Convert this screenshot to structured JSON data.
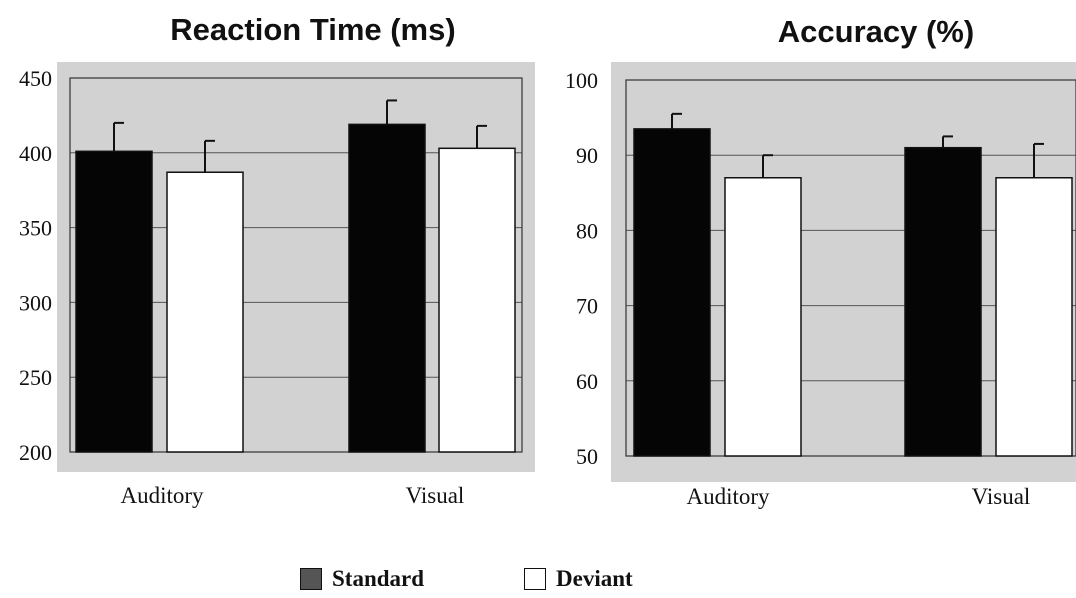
{
  "chart_data": [
    {
      "type": "bar",
      "title": "Reaction Time (ms)",
      "categories": [
        "Auditory",
        "Visual"
      ],
      "ylim": [
        200,
        450
      ],
      "yticks": [
        200,
        250,
        300,
        350,
        400,
        450
      ],
      "grid": true,
      "series": [
        {
          "name": "Standard",
          "values": [
            401,
            419
          ],
          "errors": [
            19,
            16
          ]
        },
        {
          "name": "Deviant",
          "values": [
            387,
            403
          ],
          "errors": [
            21,
            15
          ]
        }
      ]
    },
    {
      "type": "bar",
      "title": "Accuracy (%)",
      "categories": [
        "Auditory",
        "Visual"
      ],
      "ylim": [
        50,
        100
      ],
      "yticks": [
        50,
        60,
        70,
        80,
        90,
        100
      ],
      "grid": true,
      "series": [
        {
          "name": "Standard",
          "values": [
            93.5,
            91
          ],
          "errors": [
            2,
            1.5
          ]
        },
        {
          "name": "Deviant",
          "values": [
            87,
            87
          ],
          "errors": [
            3,
            4.5
          ]
        }
      ]
    }
  ],
  "legend": {
    "items": [
      {
        "label": "Standard",
        "color": "#555555"
      },
      {
        "label": "Deviant",
        "color": "#ffffff"
      }
    ],
    "placement": "bottom-center"
  },
  "colors": {
    "standard_bar": "#050505",
    "deviant_bar": "#ffffff",
    "plot_background": "#d2d2d2"
  }
}
